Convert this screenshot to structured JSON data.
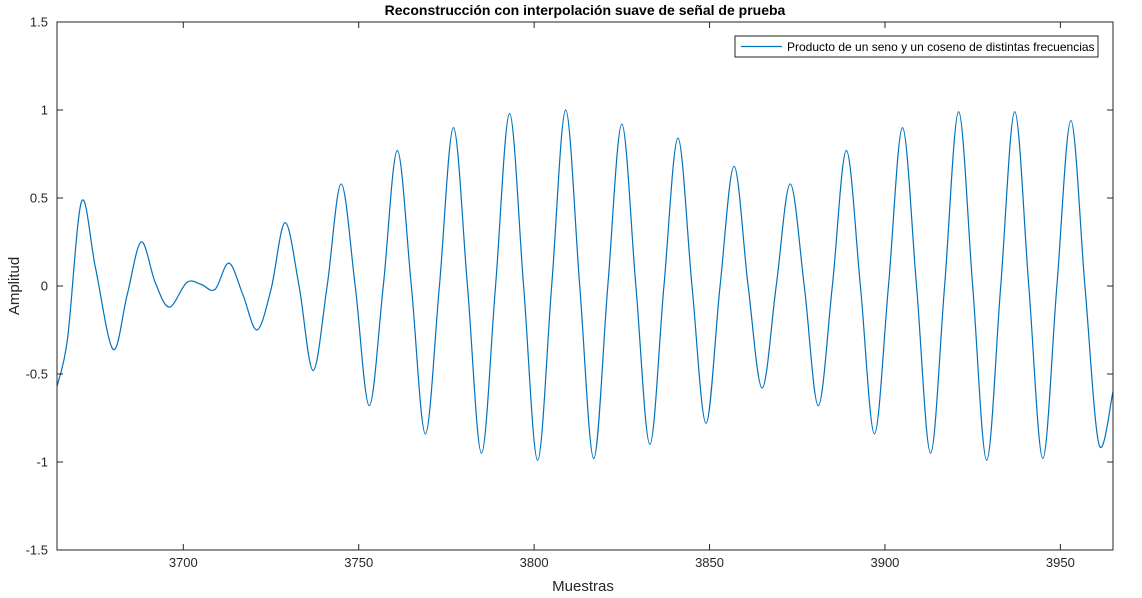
{
  "chart_data": {
    "type": "line",
    "title": "Reconstrucción con interpolación suave de señal de prueba",
    "xlabel": "Muestras",
    "ylabel": "Amplitud",
    "xlim": [
      3664,
      3965
    ],
    "ylim": [
      -1.5,
      1.5
    ],
    "xticks": [
      3700,
      3750,
      3800,
      3850,
      3900,
      3950
    ],
    "xtick_labels": [
      "3700",
      "3750",
      "3800",
      "3850",
      "3900",
      "3950"
    ],
    "yticks": [
      -1.5,
      -1,
      -0.5,
      0,
      0.5,
      1,
      1.5
    ],
    "ytick_labels": [
      "-1.5",
      "-1",
      "-0.5",
      "0",
      "0.5",
      "1",
      "1.5"
    ],
    "grid": false,
    "legend_position": "top-right",
    "series_color": "#0072BD",
    "series": [
      {
        "name": "Producto de un seno y un coseno de distintas frecuencias",
        "x": [
          3664,
          3667,
          3671,
          3675,
          3680,
          3684,
          3688,
          3692,
          3696,
          3701,
          3705,
          3709,
          3713,
          3717,
          3721,
          3725,
          3729,
          3733,
          3737,
          3741,
          3745,
          3749,
          3753,
          3757,
          3761,
          3765,
          3769,
          3773,
          3777,
          3781,
          3785,
          3789,
          3793,
          3797,
          3801,
          3805,
          3809,
          3813,
          3817,
          3821,
          3825,
          3829,
          3833,
          3837,
          3841,
          3845,
          3849,
          3853,
          3857,
          3861,
          3865,
          3869,
          3873,
          3877,
          3881,
          3885,
          3889,
          3893,
          3897,
          3901,
          3905,
          3909,
          3913,
          3917,
          3921,
          3925,
          3929,
          3933,
          3937,
          3941,
          3945,
          3949,
          3953,
          3957,
          3961,
          3965
        ],
        "y": [
          -0.57,
          -0.3,
          0.48,
          0.1,
          -0.36,
          -0.05,
          0.25,
          0.02,
          -0.12,
          0.02,
          0.01,
          -0.02,
          0.13,
          -0.05,
          -0.25,
          -0.02,
          0.36,
          0.0,
          -0.48,
          0.0,
          0.58,
          0.0,
          -0.68,
          0.0,
          0.77,
          0.0,
          -0.84,
          0.0,
          0.9,
          0.0,
          -0.95,
          0.0,
          0.98,
          0.0,
          -0.99,
          0.0,
          1.0,
          0.0,
          -0.98,
          0.0,
          0.92,
          0.0,
          -0.9,
          0.0,
          0.84,
          0.0,
          -0.78,
          0.0,
          0.68,
          0.0,
          -0.58,
          0.0,
          0.58,
          0.0,
          -0.68,
          0.0,
          0.77,
          0.0,
          -0.84,
          0.0,
          0.9,
          0.0,
          -0.95,
          0.0,
          0.99,
          0.0,
          -0.99,
          0.0,
          0.99,
          0.0,
          -0.98,
          0.0,
          0.94,
          0.0,
          -0.9,
          -0.6
        ]
      }
    ]
  }
}
